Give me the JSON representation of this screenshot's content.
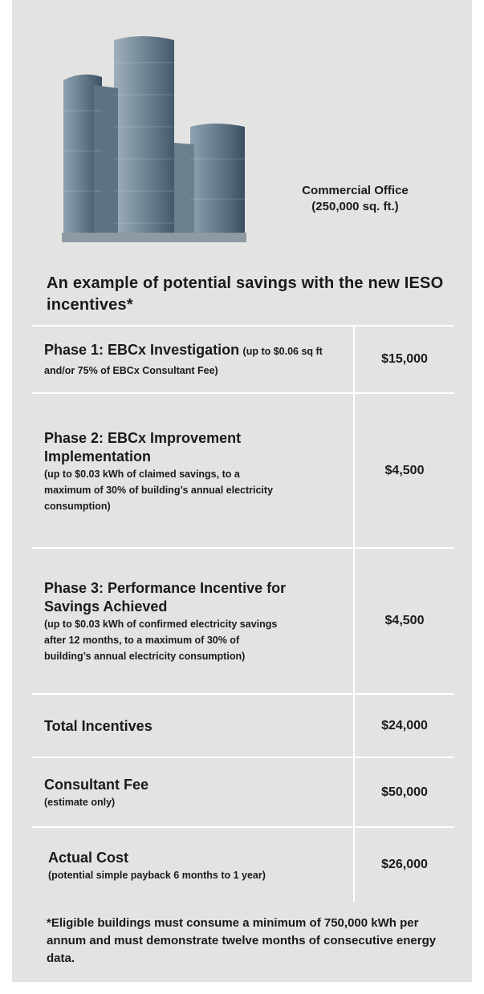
{
  "caption": [
    "Commercial Office",
    "(250,000 sq. ft.)"
  ],
  "heading": "An example of potential savings with the new IESO incentives*",
  "table": {
    "rows": [
      {
        "title": "Phase 1: EBCx Investigation",
        "note": "(up to $0.06 sq ft and/or 75% of EBCx Consultant Fee)",
        "amount": "$15,000"
      },
      {
        "title": "Phase 2: EBCx Improvement Implementation",
        "note": "(up to $0.03 kWh of claimed savings, to a maximum of 30% of building’s annual electricity consumption)",
        "amount": "$4,500"
      },
      {
        "title": "Phase 3: Performance Incentive for Savings Achieved",
        "note": "(up to $0.03 kWh of confirmed electricity savings after 12 months, to a maximum of 30% of building’s annual electricity consumption)",
        "amount": "$4,500"
      },
      {
        "title": "Total Incentives",
        "amount": "$24,000"
      },
      {
        "title": "Consultant Fee",
        "note": "(estimate only)",
        "amount": "$50,000"
      },
      {
        "title": "Actual Cost",
        "note": "(potential simple payback 6 months to 1 year)",
        "amount": "$26,000"
      }
    ]
  },
  "footnote": "*Eligible buildings must consume a minimum of 750,000 kWh per annum and must demonstrate twelve months of consecutive energy data."
}
